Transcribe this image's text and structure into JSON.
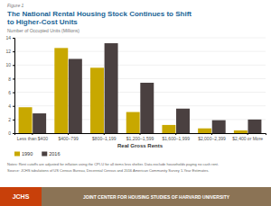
{
  "chart_data": {
    "type": "bar",
    "title": "The National Rental Housing Stock Continues to Shift\nto Higher-Cost Units",
    "subtitle": "Number of Occupied Units (Millions)",
    "xlabel": "Real Gross Rents",
    "categories": [
      "Less than $400",
      "$400–799",
      "$800–1,199",
      "$1,200–1,599",
      "$1,600–1,999",
      "$2,000–2,399",
      "$2,400 or More"
    ],
    "series": [
      {
        "name": "1990",
        "color": "#c8a800",
        "values": [
          3.8,
          12.5,
          9.6,
          3.1,
          1.2,
          0.7,
          0.4
        ]
      },
      {
        "name": "2016",
        "color": "#4a4040",
        "values": [
          2.9,
          10.9,
          13.2,
          7.4,
          3.6,
          1.9,
          2.0
        ]
      }
    ],
    "ylim": [
      0,
      14
    ],
    "yticks": [
      0,
      2,
      4,
      6,
      8,
      10,
      12,
      14
    ],
    "grid": true,
    "legend": "bottom",
    "annotations": [
      "Figure 1",
      "Notes: Rent cutoffs are adjusted for inflation using the CPI-U for all items less shelter. Data exclude households paying no cash rent.",
      "Source: JCHS tabulations of US Census Bureau, Decennial Census and 2016 American Community Survey 1-Year Estimates.",
      "JOINT CENTER FOR HOUSING STUDIES OF HARVARD UNIVERSITY",
      "JCHS"
    ]
  }
}
